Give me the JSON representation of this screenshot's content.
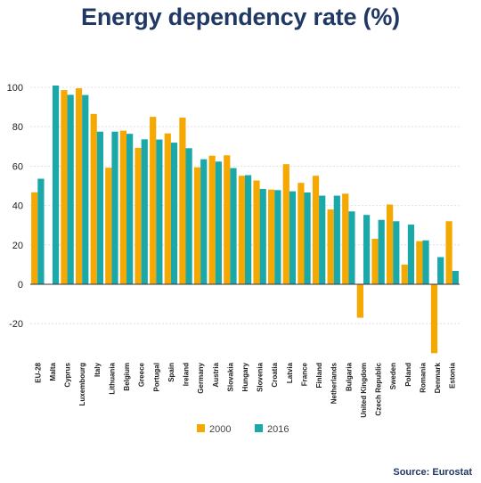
{
  "title": "Energy dependency rate (%)",
  "source": "Source: Eurostat",
  "colors": {
    "s2000": "#f5a800",
    "s2016": "#1aa8a8",
    "grid": "#d9d9d9",
    "axis": "#333333"
  },
  "chart_data": {
    "type": "bar",
    "title": "Energy dependency rate (%)",
    "xlabel": "",
    "ylabel": "",
    "ylim": [
      -35,
      100
    ],
    "yticks": [
      -20,
      0,
      20,
      40,
      60,
      80,
      100
    ],
    "grid": true,
    "legend_position": "bottom",
    "categories": [
      "EU-28",
      "Malta",
      "Cyprus",
      "Luxembourg",
      "Italy",
      "Lithuania",
      "Belgium",
      "Greece",
      "Portugal",
      "Spain",
      "Ireland",
      "Germany",
      "Austria",
      "Slovakia",
      "Hungary",
      "Slovenia",
      "Croatia",
      "Latvia",
      "France",
      "Finland",
      "Netherlands",
      "Bulgaria",
      "United Kingdom",
      "Czech Republic",
      "Sweden",
      "Poland",
      "Romania",
      "Denmark",
      "Estonia"
    ],
    "series": [
      {
        "name": "2000",
        "values": [
          46.7,
          null,
          98.6,
          99.5,
          86.5,
          59.2,
          78.0,
          69.3,
          85.0,
          76.6,
          84.6,
          59.4,
          65.3,
          65.5,
          55.1,
          52.7,
          48.1,
          61.0,
          51.5,
          55.1,
          38.0,
          46.0,
          -17.0,
          23.1,
          40.5,
          10.0,
          21.9,
          -35.0,
          32.0
        ]
      },
      {
        "name": "2016",
        "values": [
          53.6,
          100.9,
          96.2,
          96.1,
          77.5,
          77.5,
          76.4,
          73.6,
          73.5,
          71.9,
          69.1,
          63.5,
          62.3,
          59.0,
          55.4,
          48.4,
          47.8,
          47.2,
          46.6,
          45.0,
          45.0,
          37.0,
          35.2,
          32.7,
          32.0,
          30.3,
          22.3,
          13.8,
          6.8
        ]
      }
    ]
  }
}
